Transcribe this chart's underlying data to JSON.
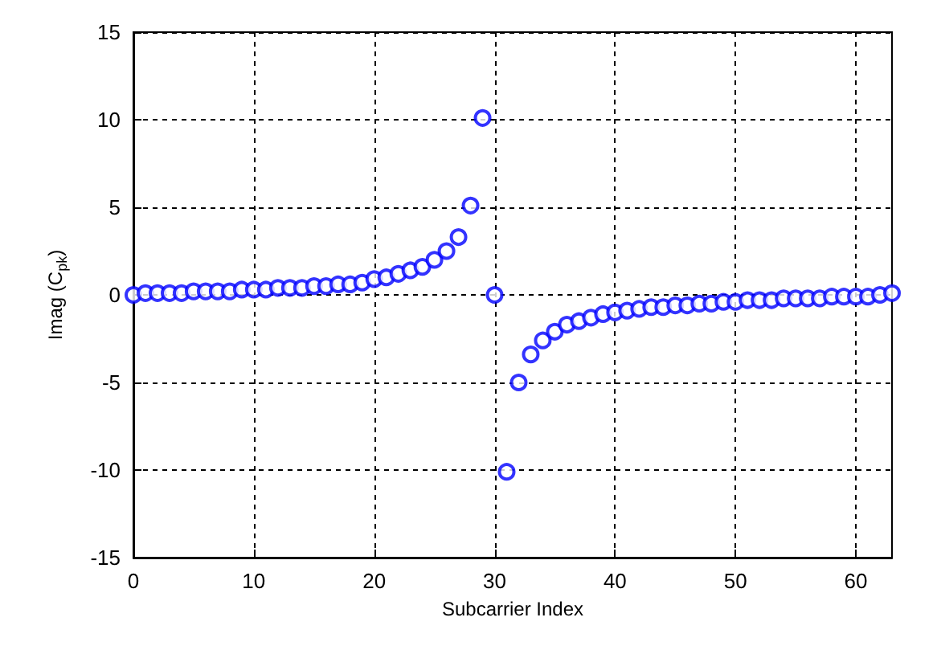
{
  "chart_data": {
    "type": "scatter",
    "xlabel": "Subcarrier Index",
    "ylabel": "Imag (C$_{pk}$)",
    "x": [
      0,
      1,
      2,
      3,
      4,
      5,
      6,
      7,
      8,
      9,
      10,
      11,
      12,
      13,
      14,
      15,
      16,
      17,
      18,
      19,
      20,
      21,
      22,
      23,
      24,
      25,
      26,
      27,
      28,
      29,
      30,
      31,
      32,
      33,
      34,
      35,
      36,
      37,
      38,
      39,
      40,
      41,
      42,
      43,
      44,
      45,
      46,
      47,
      48,
      49,
      50,
      51,
      52,
      53,
      54,
      55,
      56,
      57,
      58,
      59,
      60,
      61,
      62,
      63
    ],
    "series": [
      {
        "color": "#0000ff",
        "values": [
          0,
          0.1,
          0.1,
          0.1,
          0.1,
          0.2,
          0.2,
          0.2,
          0.2,
          0.3,
          0.3,
          0.3,
          0.4,
          0.4,
          0.4,
          0.5,
          0.5,
          0.6,
          0.6,
          0.7,
          0.9,
          1.0,
          1.2,
          1.4,
          1.6,
          2.0,
          2.5,
          3.3,
          5.1,
          10.1,
          0,
          -10.1,
          -5,
          -3.4,
          -2.6,
          -2.1,
          -1.7,
          -1.5,
          -1.3,
          -1.1,
          -1.0,
          -0.9,
          -0.8,
          -0.7,
          -0.7,
          -0.6,
          -0.6,
          -0.5,
          -0.5,
          -0.4,
          -0.4,
          -0.3,
          -0.3,
          -0.3,
          -0.2,
          -0.2,
          -0.2,
          -0.2,
          -0.1,
          -0.1,
          -0.1,
          -0.1,
          0,
          0.1
        ]
      }
    ],
    "xlim": [
      0,
      63
    ],
    "xticks": [
      0,
      10,
      20,
      30,
      40,
      50,
      60
    ],
    "ylim": [
      -15,
      15
    ],
    "yticks": [
      -15,
      -10,
      -5,
      0,
      5,
      10,
      15
    ],
    "grid": true,
    "marker": "circle"
  }
}
